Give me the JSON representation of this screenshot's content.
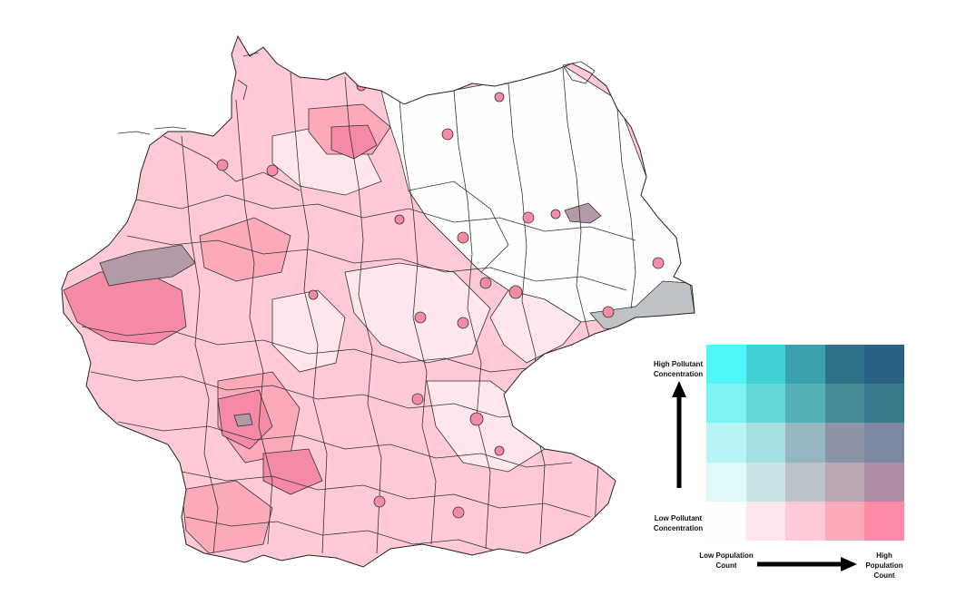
{
  "legend": {
    "high_pollutant": "High Pollutant Concentration",
    "low_pollutant": "Low Pollutant Concentration",
    "low_population": "Low Population Count",
    "high_population": "High Population Count",
    "grid_colors": [
      [
        "#4ff7f9",
        "#3fd1d3",
        "#3aa1ad",
        "#2e7289",
        "#2a6284"
      ],
      [
        "#7bf2f6",
        "#63d9db",
        "#55b1b7",
        "#458c97",
        "#387a8c"
      ],
      [
        "#b9f4f4",
        "#a6dfe0",
        "#96b7c2",
        "#8d94a8",
        "#7c889f"
      ],
      [
        "#def9f8",
        "#c9e2e5",
        "#bcc2c9",
        "#baa7b4",
        "#ae8ea5"
      ],
      [
        "#fefefc",
        "#ffe6ec",
        "#ffcad6",
        "#fcaab9",
        "#ff8aa8"
      ]
    ]
  },
  "map": {
    "colors": {
      "white": "#fefefc",
      "pink_1": "#ffe6ec",
      "pink_2": "#ffcad6",
      "pink_3": "#fcaab9",
      "pink_4": "#f48aa4",
      "mauve": "#b39aa8",
      "grey": "#bfc2c7",
      "border": "#333333"
    }
  }
}
